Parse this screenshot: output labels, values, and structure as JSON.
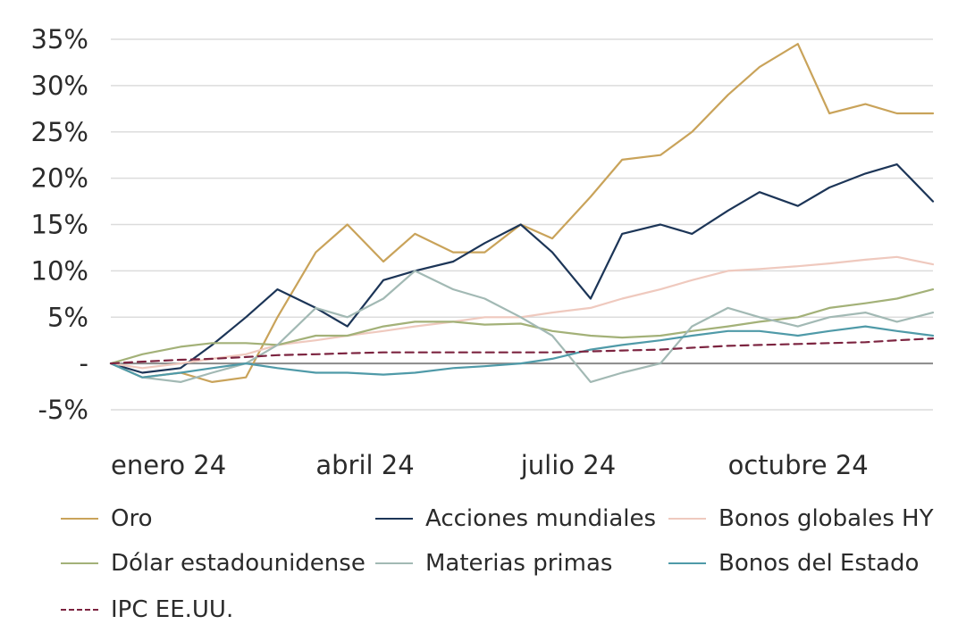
{
  "chart_data": {
    "type": "line",
    "title": "",
    "xlabel": "",
    "ylabel": "",
    "x_tick_labels": [
      "enero 24",
      "abril 24",
      "julio 24",
      "octubre 24"
    ],
    "y_tick_labels": [
      "35%",
      "30%",
      "25%",
      "20%",
      "15%",
      "10%",
      "5%",
      "-",
      "-5%"
    ],
    "ylim": [
      -5,
      35
    ],
    "grid": true,
    "legend_position": "bottom",
    "x": [
      "2024-01-01",
      "2024-01-15",
      "2024-02-01",
      "2024-02-15",
      "2024-03-01",
      "2024-03-15",
      "2024-04-01",
      "2024-04-15",
      "2024-05-01",
      "2024-05-15",
      "2024-06-01",
      "2024-06-15",
      "2024-07-01",
      "2024-07-15",
      "2024-08-01",
      "2024-08-15",
      "2024-09-01",
      "2024-09-15",
      "2024-10-01",
      "2024-10-15",
      "2024-11-01",
      "2024-11-15",
      "2024-12-01",
      "2024-12-15",
      "2024-12-31"
    ],
    "series": [
      {
        "name": "Oro",
        "color": "#c9a35a",
        "dash": false,
        "values": [
          0,
          -1.5,
          -1,
          -2,
          -1.5,
          5,
          12,
          15,
          11,
          14,
          12,
          12,
          15,
          13.5,
          18,
          22,
          22.5,
          25,
          29,
          32,
          34.5,
          27,
          28,
          27,
          27
        ]
      },
      {
        "name": "Acciones mundiales",
        "color": "#1c3557",
        "dash": false,
        "values": [
          0,
          -1,
          -0.5,
          2,
          5,
          8,
          6,
          4,
          9,
          10,
          11,
          13,
          15,
          12,
          7,
          14,
          15,
          14,
          16.5,
          18.5,
          17,
          19,
          20.5,
          21.5,
          17.5
        ]
      },
      {
        "name": "Bonos globales HY",
        "color": "#efc9be",
        "dash": false,
        "values": [
          0,
          -0.5,
          0,
          0.5,
          1,
          2,
          2.5,
          3,
          3.5,
          4,
          4.5,
          5,
          5,
          5.5,
          6,
          7,
          8,
          9,
          10,
          10.2,
          10.5,
          10.8,
          11.2,
          11.5,
          10.7
        ]
      },
      {
        "name": "Dólar estadounidense",
        "color": "#a3b178",
        "dash": false,
        "values": [
          0,
          1,
          1.8,
          2.2,
          2.2,
          2,
          3,
          3,
          4,
          4.5,
          4.5,
          4.2,
          4.3,
          3.5,
          3,
          2.8,
          3,
          3.5,
          4,
          4.5,
          5,
          6,
          6.5,
          7,
          8
        ]
      },
      {
        "name": "Materias primas",
        "color": "#a2b9b4",
        "dash": false,
        "values": [
          0,
          -1.5,
          -2,
          -1,
          0,
          2,
          6,
          5,
          7,
          10,
          8,
          7,
          5,
          3,
          -2,
          -1,
          0,
          4,
          6,
          5,
          4,
          5,
          5.5,
          4.5,
          5.5
        ]
      },
      {
        "name": "Bonos del Estado",
        "color": "#4f9aa8",
        "dash": false,
        "values": [
          0,
          -1.5,
          -1,
          -0.5,
          0,
          -0.5,
          -1,
          -1,
          -1.2,
          -1,
          -0.5,
          -0.3,
          0,
          0.5,
          1.5,
          2,
          2.5,
          3,
          3.5,
          3.5,
          3,
          3.5,
          4,
          3.5,
          3
        ]
      },
      {
        "name": "IPC EE.UU.",
        "color": "#7c2440",
        "dash": true,
        "values": [
          0,
          0.2,
          0.4,
          0.5,
          0.7,
          0.9,
          1,
          1.1,
          1.2,
          1.2,
          1.2,
          1.2,
          1.2,
          1.2,
          1.3,
          1.4,
          1.5,
          1.7,
          1.9,
          2,
          2.1,
          2.2,
          2.3,
          2.5,
          2.7
        ]
      }
    ]
  }
}
